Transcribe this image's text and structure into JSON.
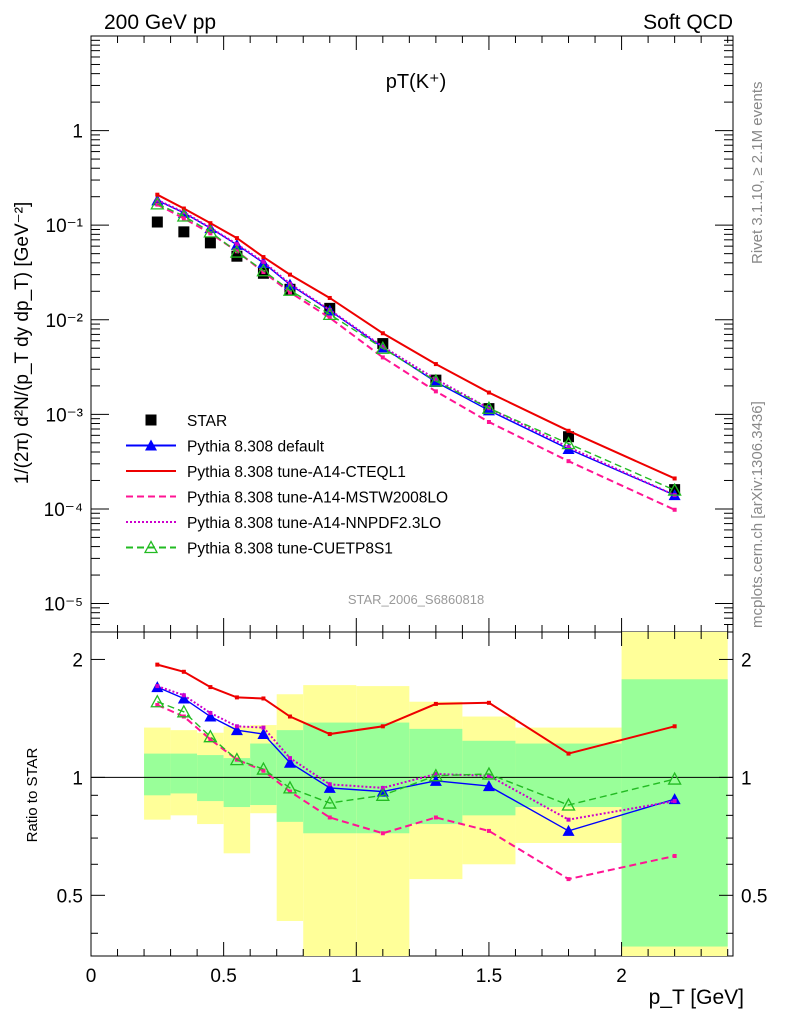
{
  "header": {
    "left": "200 GeV pp",
    "right": "Soft QCD"
  },
  "side_labels": {
    "top": "Rivet 3.1.10, ≥ 2.1M events",
    "bottom": "mcplots.cern.ch [arXiv:1306.3436]"
  },
  "chart_data": [
    {
      "type": "line",
      "title": "pT(K⁺)",
      "ylabel": "1/(2π) d²N/(p_T dy dp_T) [GeV⁻²]",
      "xlabel": "",
      "yscale": "log",
      "xlim": [
        0,
        2.42
      ],
      "ylim": [
        5e-06,
        10
      ],
      "y_tick_labels": [
        "10⁻⁵",
        "10⁻⁴",
        "10⁻³",
        "10⁻²",
        "10⁻¹",
        "1"
      ],
      "y_tick_values": [
        1e-05,
        0.0001,
        0.001,
        0.01,
        0.1,
        1
      ],
      "grid": false,
      "legend_position": "bottom-left",
      "watermark": "STAR_2006_S6860818",
      "x": [
        0.25,
        0.35,
        0.45,
        0.55,
        0.65,
        0.75,
        0.9,
        1.1,
        1.3,
        1.5,
        1.8,
        2.2
      ],
      "series": [
        {
          "name": "STAR",
          "color": "#000000",
          "style": "marker",
          "marker": "square",
          "values": [
            0.108,
            0.085,
            0.065,
            0.047,
            0.031,
            0.021,
            0.0132,
            0.0056,
            0.0023,
            0.00115,
            0.00058,
            0.00016
          ]
        },
        {
          "name": "Pythia 8.308 default",
          "color": "#0000ff",
          "style": "solid",
          "marker": "triangle",
          "values": [
            0.183,
            0.135,
            0.093,
            0.062,
            0.04,
            0.0235,
            0.0125,
            0.0051,
            0.0022,
            0.0011,
            0.00043,
            0.00014
          ]
        },
        {
          "name": "Pythia 8.308 tune-A14-CTEQL1",
          "color": "#ee0000",
          "style": "solid",
          "marker": "none",
          "values": [
            0.21,
            0.15,
            0.105,
            0.073,
            0.046,
            0.03,
            0.017,
            0.0072,
            0.0034,
            0.0017,
            0.00067,
            0.00021
          ]
        },
        {
          "name": "Pythia 8.308 tune-A14-MSTW2008LO",
          "color": "#ff1493",
          "style": "dashed",
          "marker": "none",
          "values": [
            0.165,
            0.118,
            0.082,
            0.053,
            0.032,
            0.0195,
            0.0105,
            0.004,
            0.00175,
            0.00083,
            0.00032,
            9.8e-05
          ]
        },
        {
          "name": "Pythia 8.308 tune-A14-NNPDF2.3LO",
          "color": "#cc00cc",
          "style": "dotted",
          "marker": "none",
          "values": [
            0.185,
            0.137,
            0.094,
            0.063,
            0.041,
            0.024,
            0.0127,
            0.0052,
            0.00235,
            0.00116,
            0.00045,
            0.00014
          ]
        },
        {
          "name": "Pythia 8.308 tune-CUETP8S1",
          "color": "#22bb22",
          "style": "dashed",
          "marker": "open-triangle",
          "values": [
            0.168,
            0.125,
            0.085,
            0.052,
            0.033,
            0.0205,
            0.0114,
            0.005,
            0.00225,
            0.00116,
            0.00049,
            0.000158
          ]
        }
      ]
    },
    {
      "type": "line",
      "ylabel": "Ratio to STAR",
      "xlabel": "p_T [GeV]",
      "yscale": "log",
      "xlim": [
        0,
        2.42
      ],
      "ylim": [
        0.35,
        2.35
      ],
      "x_tick_labels": [
        "0",
        "0.5",
        "1",
        "1.5",
        "2"
      ],
      "x_tick_values": [
        0,
        0.5,
        1,
        1.5,
        2
      ],
      "y_tick_labels": [
        "0.5",
        "1",
        "2"
      ],
      "y_tick_values": [
        0.5,
        1,
        2
      ],
      "reference_line": 1,
      "bands": {
        "edges": [
          0.2,
          0.3,
          0.4,
          0.5,
          0.6,
          0.7,
          0.8,
          1.0,
          1.2,
          1.4,
          1.6,
          2.0,
          2.4
        ],
        "green_low": [
          0.9,
          0.91,
          0.87,
          0.84,
          0.85,
          0.77,
          0.72,
          0.72,
          0.76,
          0.8,
          0.84,
          0.37
        ],
        "green_high": [
          1.15,
          1.15,
          1.14,
          1.12,
          1.22,
          1.32,
          1.38,
          1.38,
          1.33,
          1.24,
          1.22,
          1.78
        ],
        "yellow_low": [
          0.78,
          0.8,
          0.76,
          0.64,
          0.81,
          0.43,
          0.35,
          0.35,
          0.55,
          0.6,
          0.68,
          0.35
        ],
        "yellow_high": [
          1.34,
          1.32,
          1.3,
          1.35,
          1.36,
          1.63,
          1.72,
          1.71,
          1.56,
          1.43,
          1.34,
          2.35
        ]
      },
      "x": [
        0.25,
        0.35,
        0.45,
        0.55,
        0.65,
        0.75,
        0.9,
        1.1,
        1.3,
        1.5,
        1.8,
        2.2
      ],
      "series": [
        {
          "name": "Pythia 8.308 default",
          "color": "#0000ff",
          "style": "solid",
          "marker": "triangle",
          "values": [
            1.7,
            1.59,
            1.43,
            1.32,
            1.29,
            1.09,
            0.94,
            0.92,
            0.98,
            0.95,
            0.73,
            0.88
          ]
        },
        {
          "name": "Pythia 8.308 tune-A14-CTEQL1",
          "color": "#ee0000",
          "style": "solid",
          "marker": "none",
          "values": [
            1.94,
            1.86,
            1.7,
            1.6,
            1.59,
            1.43,
            1.29,
            1.35,
            1.54,
            1.55,
            1.15,
            1.35
          ]
        },
        {
          "name": "Pythia 8.308 tune-A14-MSTW2008LO",
          "color": "#ff1493",
          "style": "dashed",
          "marker": "none",
          "values": [
            1.53,
            1.43,
            1.25,
            1.11,
            1.04,
            0.92,
            0.79,
            0.72,
            0.79,
            0.73,
            0.55,
            0.63
          ]
        },
        {
          "name": "Pythia 8.308 tune-A14-NNPDF2.3LO",
          "color": "#cc00cc",
          "style": "dotted",
          "marker": "none",
          "values": [
            1.71,
            1.62,
            1.46,
            1.35,
            1.34,
            1.12,
            0.96,
            0.94,
            1.02,
            1.01,
            0.78,
            0.87
          ]
        },
        {
          "name": "Pythia 8.308 tune-CUETP8S1",
          "color": "#22bb22",
          "style": "dashed",
          "marker": "open-triangle",
          "values": [
            1.56,
            1.47,
            1.27,
            1.11,
            1.05,
            0.94,
            0.86,
            0.9,
            1.01,
            1.02,
            0.85,
            0.99
          ]
        }
      ]
    }
  ]
}
